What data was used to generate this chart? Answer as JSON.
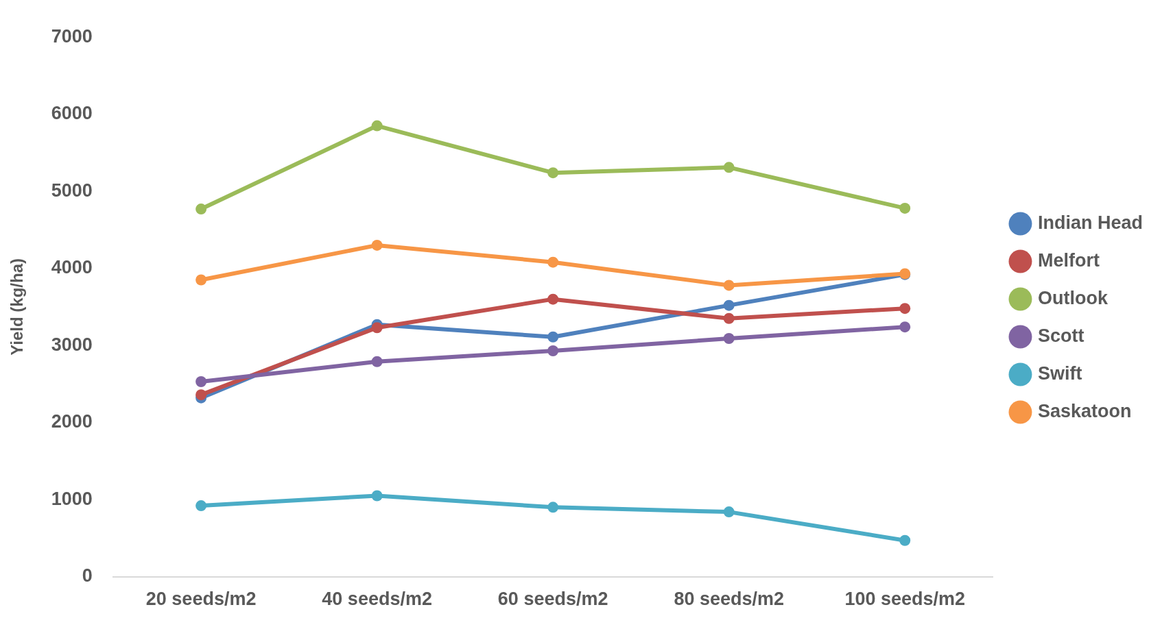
{
  "chart_data": {
    "type": "line",
    "ylabel": "Yield (kg/ha)",
    "categories": [
      "20 seeds/m2",
      "40 seeds/m2",
      "60 seeds/m2",
      "80 seeds/m2",
      "100 seeds/m2"
    ],
    "series": [
      {
        "name": "Indian Head",
        "color": "#4f81bd",
        "values": [
          2320,
          3270,
          3110,
          3520,
          3920
        ]
      },
      {
        "name": "Melfort",
        "color": "#c0504d",
        "values": [
          2360,
          3230,
          3600,
          3350,
          3480
        ]
      },
      {
        "name": "Outlook",
        "color": "#9bbb59",
        "values": [
          4770,
          5850,
          5240,
          5310,
          4780
        ]
      },
      {
        "name": "Scott",
        "color": "#8064a2",
        "values": [
          2530,
          2790,
          2930,
          3090,
          3240
        ]
      },
      {
        "name": "Swift",
        "color": "#4bacc6",
        "values": [
          920,
          1050,
          900,
          840,
          470
        ]
      },
      {
        "name": "Saskatoon",
        "color": "#f79646",
        "values": [
          3850,
          4300,
          4080,
          3780,
          3930
        ]
      }
    ],
    "ylim": [
      0,
      7000
    ],
    "yticks": [
      0,
      1000,
      2000,
      3000,
      4000,
      5000,
      6000,
      7000
    ],
    "grid": false,
    "legend": "right",
    "marker": "circle",
    "line_style": "solid"
  }
}
